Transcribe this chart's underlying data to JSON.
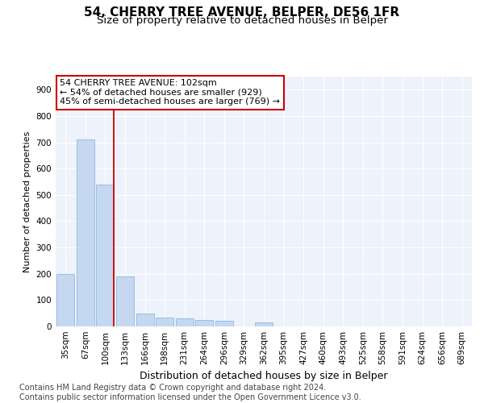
{
  "title1": "54, CHERRY TREE AVENUE, BELPER, DE56 1FR",
  "title2": "Size of property relative to detached houses in Belper",
  "xlabel": "Distribution of detached houses by size in Belper",
  "ylabel": "Number of detached properties",
  "categories": [
    "35sqm",
    "67sqm",
    "100sqm",
    "133sqm",
    "166sqm",
    "198sqm",
    "231sqm",
    "264sqm",
    "296sqm",
    "329sqm",
    "362sqm",
    "395sqm",
    "427sqm",
    "460sqm",
    "493sqm",
    "525sqm",
    "558sqm",
    "591sqm",
    "624sqm",
    "656sqm",
    "689sqm"
  ],
  "values": [
    200,
    710,
    540,
    190,
    50,
    35,
    30,
    25,
    20,
    0,
    15,
    0,
    0,
    0,
    0,
    0,
    0,
    0,
    0,
    0,
    0
  ],
  "bar_color": "#c5d8f0",
  "bar_edge_color": "#7aafe0",
  "vline_color": "#cc0000",
  "annotation_text": "54 CHERRY TREE AVENUE: 102sqm\n← 54% of detached houses are smaller (929)\n45% of semi-detached houses are larger (769) →",
  "annotation_box_color": "#ffffff",
  "annotation_box_edge_color": "#cc0000",
  "footnote": "Contains HM Land Registry data © Crown copyright and database right 2024.\nContains public sector information licensed under the Open Government Licence v3.0.",
  "ylim": [
    0,
    950
  ],
  "yticks": [
    0,
    100,
    200,
    300,
    400,
    500,
    600,
    700,
    800,
    900
  ],
  "bg_color": "#edf2fb",
  "grid_color": "#ffffff",
  "title1_fontsize": 11,
  "title2_fontsize": 9.5,
  "xlabel_fontsize": 9,
  "ylabel_fontsize": 8,
  "tick_fontsize": 7.5,
  "footnote_fontsize": 7,
  "annot_fontsize": 8
}
